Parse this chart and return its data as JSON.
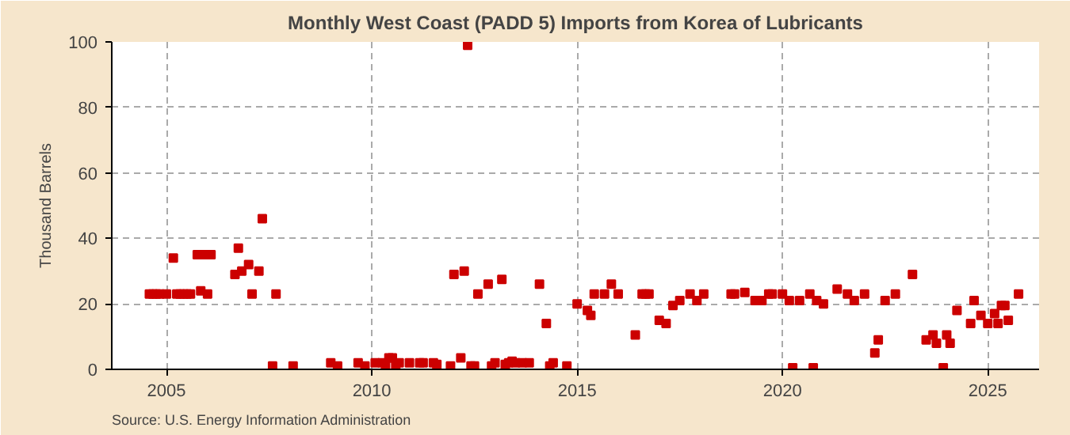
{
  "chart_data": {
    "type": "scatter",
    "title": "Monthly West Coast (PADD 5) Imports from Korea of Lubricants",
    "ylabel": "Thousand Barrels",
    "annotations": [
      "Source: U.S. Energy Information Administration"
    ],
    "marker": "square",
    "grid": true,
    "xlim": [
      "2003-09",
      "2026-04"
    ],
    "xticks": [
      "2005",
      "2010",
      "2015",
      "2020",
      "2025"
    ],
    "ylim": [
      0,
      100
    ],
    "yticks": [
      0,
      20,
      40,
      60,
      80,
      100
    ],
    "series": [
      {
        "color": "#cc0000",
        "x": [
          "2004-08",
          "2004-09",
          "2004-10",
          "2004-11",
          "2005-01",
          "2005-03",
          "2005-04",
          "2005-05",
          "2005-06",
          "2005-07",
          "2005-08",
          "2005-10",
          "2005-11",
          "2005-12",
          "2006-01",
          "2006-02",
          "2006-09",
          "2006-10",
          "2006-11",
          "2007-01",
          "2007-02",
          "2007-04",
          "2007-05",
          "2007-08",
          "2007-09",
          "2008-02",
          "2009-01",
          "2009-03",
          "2009-09",
          "2009-11",
          "2010-02",
          "2010-04",
          "2010-05",
          "2010-06",
          "2010-07",
          "2010-08",
          "2010-09",
          "2010-12",
          "2011-03",
          "2011-04",
          "2011-07",
          "2011-08",
          "2011-12",
          "2012-01",
          "2012-03",
          "2012-04",
          "2012-05",
          "2012-06",
          "2012-07",
          "2012-08",
          "2012-11",
          "2012-12",
          "2013-01",
          "2013-03",
          "2013-04",
          "2013-05",
          "2013-06",
          "2013-07",
          "2013-09",
          "2013-11",
          "2014-02",
          "2014-04",
          "2014-05",
          "2014-06",
          "2014-10",
          "2015-01",
          "2015-04",
          "2015-05",
          "2015-06",
          "2015-09",
          "2015-11",
          "2016-01",
          "2016-06",
          "2016-08",
          "2016-09",
          "2016-10",
          "2017-01",
          "2017-03",
          "2017-05",
          "2017-07",
          "2017-10",
          "2017-12",
          "2018-02",
          "2018-10",
          "2018-11",
          "2019-02",
          "2019-05",
          "2019-07",
          "2019-09",
          "2019-10",
          "2020-01",
          "2020-03",
          "2020-04",
          "2020-06",
          "2020-09",
          "2020-10",
          "2020-11",
          "2021-01",
          "2021-05",
          "2021-08",
          "2021-10",
          "2022-01",
          "2022-04",
          "2022-05",
          "2022-07",
          "2022-10",
          "2023-03",
          "2023-07",
          "2023-09",
          "2023-10",
          "2023-12",
          "2024-01",
          "2024-02",
          "2024-04",
          "2024-08",
          "2024-09",
          "2024-11",
          "2025-01",
          "2025-03",
          "2025-04",
          "2025-05",
          "2025-06",
          "2025-07",
          "2025-10"
        ],
        "values": [
          23,
          23,
          23,
          23,
          23,
          34,
          23,
          23,
          23,
          23,
          23,
          35,
          24,
          35,
          23,
          35,
          29,
          37,
          30,
          32,
          23,
          30,
          46,
          1,
          23,
          1,
          2,
          1,
          2,
          1,
          2,
          2,
          1,
          3.5,
          3.5,
          1,
          2,
          2,
          2,
          2,
          2,
          1.5,
          1,
          29,
          3.5,
          30,
          99,
          1,
          1,
          23,
          26,
          1,
          2,
          27.5,
          1.5,
          2,
          2.5,
          2,
          2,
          2,
          26,
          14,
          1,
          2,
          1,
          20,
          18,
          16.5,
          23,
          23,
          26,
          23,
          10.5,
          23,
          23,
          23,
          15,
          14,
          19.5,
          21,
          23,
          21,
          23,
          23,
          23,
          23.5,
          21,
          21,
          23,
          23,
          23,
          21,
          0.5,
          21,
          23,
          0.5,
          21,
          20,
          24.5,
          23,
          21,
          23,
          5,
          9,
          21,
          23,
          29,
          9,
          10.5,
          8,
          0.5,
          10.5,
          8,
          18,
          14,
          21,
          16.5,
          14,
          17,
          14,
          19.5,
          19.5,
          15,
          23
        ]
      }
    ]
  }
}
